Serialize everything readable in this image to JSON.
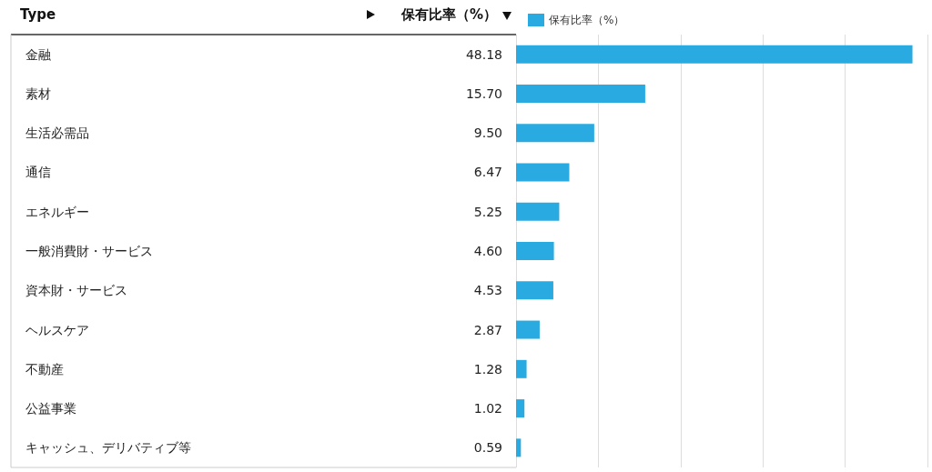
{
  "chart_data": {
    "type": "bar",
    "orientation": "horizontal",
    "ylabel": "Type",
    "xlabel": "保有比率（%）",
    "categories": [
      "金融",
      "素材",
      "生活必需品",
      "通信",
      "エネルギー",
      "一般消費財・サービス",
      "資本財・サービス",
      "ヘルスケア",
      "不動産",
      "公益事業",
      "キャッシュ、デリバティブ等"
    ],
    "series": [
      {
        "name": "保有比率（%）",
        "color": "#29abe2",
        "values": [
          48.18,
          15.7,
          9.5,
          6.47,
          5.25,
          4.6,
          4.53,
          2.87,
          1.28,
          1.02,
          0.59
        ],
        "value_labels": [
          "48.18",
          "15.70",
          "9.50",
          "6.47",
          "5.25",
          "4.60",
          "4.53",
          "2.87",
          "1.28",
          "1.02",
          "0.59"
        ]
      }
    ],
    "xlim": [
      0,
      50
    ],
    "xticks": [
      {
        "value": 0,
        "label": null
      },
      {
        "value": 10,
        "label": null
      },
      {
        "value": 20,
        "label": null
      },
      {
        "value": 30,
        "label": null
      },
      {
        "value": 40,
        "label": null
      },
      {
        "value": 50,
        "label": null
      }
    ],
    "grid": "x",
    "legend": "top",
    "tick_labels": "y"
  }
}
